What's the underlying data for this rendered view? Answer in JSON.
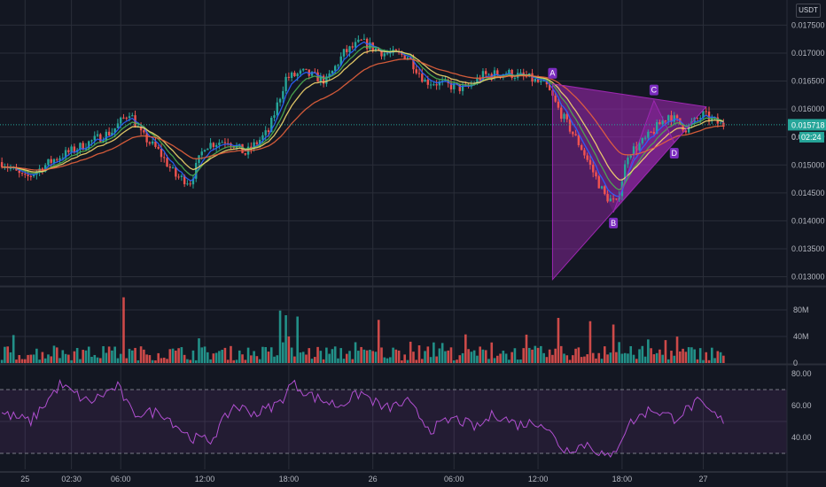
{
  "currency_label": "USDT",
  "colors": {
    "background": "#131722",
    "grid": "#2a2e39",
    "bull": "#26a69a",
    "bear": "#ef5350",
    "ema_fast": "#2962ff",
    "ema_mid": "#f5d76e",
    "ema_slow": "#e8623c",
    "ema_mid2": "#4caf50",
    "pattern": "#9c27b0",
    "rsi": "#b04fd0"
  },
  "chart_data": [
    {
      "type": "candlestick",
      "panel": "price",
      "x_ticks": [
        "25",
        "02:30",
        "06:00",
        "12:00",
        "18:00",
        "26",
        "06:00",
        "12:00",
        "18:00",
        "27"
      ],
      "y_ticks": [
        "0.017500",
        "0.017000",
        "0.016500",
        "0.016000",
        "0.015500",
        "0.015000",
        "0.014500",
        "0.014000",
        "0.013500",
        "0.013000"
      ],
      "ylim": [
        0.01285,
        0.01795
      ],
      "last_price": "0.015718",
      "countdown_price": "0.01",
      "countdown": "02:24",
      "anchors": [
        {
          "c": 0,
          "p": 0.01505
        },
        {
          "c": 8,
          "p": 0.01475
        },
        {
          "c": 18,
          "p": 0.0151
        },
        {
          "c": 28,
          "p": 0.01535
        },
        {
          "c": 38,
          "p": 0.0156
        },
        {
          "c": 44,
          "p": 0.01595
        },
        {
          "c": 48,
          "p": 0.01555
        },
        {
          "c": 54,
          "p": 0.01525
        },
        {
          "c": 60,
          "p": 0.0148
        },
        {
          "c": 65,
          "p": 0.0147
        },
        {
          "c": 70,
          "p": 0.01535
        },
        {
          "c": 78,
          "p": 0.01545
        },
        {
          "c": 84,
          "p": 0.0152
        },
        {
          "c": 92,
          "p": 0.0156
        },
        {
          "c": 98,
          "p": 0.01655
        },
        {
          "c": 104,
          "p": 0.01665
        },
        {
          "c": 112,
          "p": 0.0165
        },
        {
          "c": 118,
          "p": 0.017
        },
        {
          "c": 124,
          "p": 0.0172
        },
        {
          "c": 132,
          "p": 0.017
        },
        {
          "c": 140,
          "p": 0.01695
        },
        {
          "c": 146,
          "p": 0.0165
        },
        {
          "c": 152,
          "p": 0.01645
        },
        {
          "c": 160,
          "p": 0.01635
        },
        {
          "c": 166,
          "p": 0.0166
        },
        {
          "c": 174,
          "p": 0.01665
        },
        {
          "c": 182,
          "p": 0.01655
        },
        {
          "c": 188,
          "p": 0.0164
        },
        {
          "c": 192,
          "p": 0.016
        },
        {
          "c": 200,
          "p": 0.0153
        },
        {
          "c": 208,
          "p": 0.01445
        },
        {
          "c": 212,
          "p": 0.0143
        },
        {
          "c": 216,
          "p": 0.0152
        },
        {
          "c": 222,
          "p": 0.01545
        },
        {
          "c": 230,
          "p": 0.0159
        },
        {
          "c": 236,
          "p": 0.01565
        },
        {
          "c": 242,
          "p": 0.0159
        },
        {
          "c": 248,
          "p": 0.01572
        }
      ],
      "pattern": {
        "type": "ABCD triangle",
        "labels": [
          "A",
          "B",
          "C",
          "D"
        ],
        "points": [
          {
            "c": 190,
            "p": 0.01645
          },
          {
            "c": 211,
            "p": 0.01415
          },
          {
            "c": 225,
            "p": 0.01615
          },
          {
            "c": 232,
            "p": 0.0154
          }
        ],
        "apex": {
          "c": 243,
          "p": 0.01604
        },
        "low": {
          "c": 190,
          "p": 0.01295
        }
      }
    },
    {
      "type": "bar",
      "panel": "volume",
      "y_ticks": [
        "80M",
        "40M",
        "0"
      ],
      "ylim": [
        0,
        100
      ],
      "unit": "M",
      "spikes": [
        {
          "c": 42,
          "v": 99
        },
        {
          "c": 96,
          "v": 79
        },
        {
          "c": 98,
          "v": 72
        },
        {
          "c": 102,
          "v": 70
        },
        {
          "c": 130,
          "v": 65
        },
        {
          "c": 192,
          "v": 68
        },
        {
          "c": 203,
          "v": 63
        },
        {
          "c": 211,
          "v": 58
        }
      ]
    },
    {
      "type": "line",
      "panel": "rsi",
      "y_ticks": [
        "80.00",
        "60.00",
        "40.00"
      ],
      "ylim": [
        20,
        85
      ],
      "bands": [
        70,
        30
      ],
      "anchors": [
        {
          "c": 0,
          "v": 55
        },
        {
          "c": 10,
          "v": 50
        },
        {
          "c": 20,
          "v": 73
        },
        {
          "c": 30,
          "v": 62
        },
        {
          "c": 40,
          "v": 72
        },
        {
          "c": 45,
          "v": 55
        },
        {
          "c": 55,
          "v": 56
        },
        {
          "c": 65,
          "v": 40
        },
        {
          "c": 72,
          "v": 38
        },
        {
          "c": 80,
          "v": 60
        },
        {
          "c": 88,
          "v": 55
        },
        {
          "c": 96,
          "v": 62
        },
        {
          "c": 100,
          "v": 74
        },
        {
          "c": 108,
          "v": 65
        },
        {
          "c": 116,
          "v": 60
        },
        {
          "c": 124,
          "v": 68
        },
        {
          "c": 132,
          "v": 58
        },
        {
          "c": 140,
          "v": 62
        },
        {
          "c": 148,
          "v": 45
        },
        {
          "c": 156,
          "v": 52
        },
        {
          "c": 164,
          "v": 46
        },
        {
          "c": 170,
          "v": 55
        },
        {
          "c": 178,
          "v": 48
        },
        {
          "c": 186,
          "v": 50
        },
        {
          "c": 194,
          "v": 32
        },
        {
          "c": 202,
          "v": 36
        },
        {
          "c": 210,
          "v": 26
        },
        {
          "c": 216,
          "v": 48
        },
        {
          "c": 224,
          "v": 58
        },
        {
          "c": 232,
          "v": 52
        },
        {
          "c": 240,
          "v": 62
        },
        {
          "c": 248,
          "v": 51
        }
      ]
    }
  ]
}
